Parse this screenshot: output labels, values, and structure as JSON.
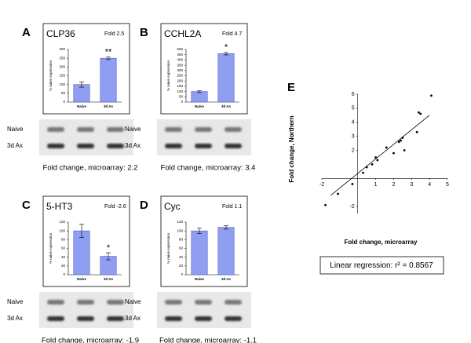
{
  "chart_data": [
    {
      "type": "bar",
      "panel": "A",
      "title": "CLP36",
      "fold": "Fold 2.5",
      "ylabel": "% naive expression",
      "categories": [
        "Naive",
        "3d Ax"
      ],
      "values": [
        100,
        250
      ],
      "errors": [
        15,
        8
      ],
      "annotation": "**",
      "color": "#8f9ef0",
      "ylim": [
        0,
        300
      ],
      "yticks": [
        0,
        50,
        100,
        150,
        200,
        250,
        300
      ],
      "gel_rows": [
        "Naive",
        "3d Ax"
      ],
      "caption": "Fold change, microarray: 2.2"
    },
    {
      "type": "bar",
      "panel": "B",
      "title": "CCHL2A",
      "fold": "Fold 4.7",
      "ylabel": "% naive expression",
      "categories": [
        "Naive",
        "3d Ax"
      ],
      "values": [
        100,
        460
      ],
      "errors": [
        10,
        12
      ],
      "annotation": "*",
      "color": "#8f9ef0",
      "ylim": [
        0,
        500
      ],
      "yticks": [
        0,
        50,
        100,
        150,
        200,
        250,
        300,
        350,
        400,
        450,
        500
      ],
      "gel_rows": [
        "Naive",
        "3d Ax"
      ],
      "caption": "Fold change, microarray: 3.4"
    },
    {
      "type": "bar",
      "panel": "C",
      "title": "5-HT3",
      "fold": "Fold -2.6",
      "ylabel": "% naive expression",
      "categories": [
        "Naive",
        "3d Ax"
      ],
      "values": [
        100,
        42
      ],
      "errors": [
        15,
        8
      ],
      "annotation": "*",
      "color": "#8f9ef0",
      "ylim": [
        0,
        120
      ],
      "yticks": [
        0,
        20,
        40,
        60,
        80,
        100,
        120
      ],
      "gel_rows": [
        "Naive",
        "3d Ax"
      ],
      "caption": "Fold change, microarray: -1.9"
    },
    {
      "type": "bar",
      "panel": "D",
      "title": "Cyc",
      "fold": "Fold 1.1",
      "ylabel": "% naive expression",
      "categories": [
        "Naive",
        "3d Ax"
      ],
      "values": [
        100,
        108
      ],
      "errors": [
        6,
        4
      ],
      "color": "#8f9ef0",
      "ylim": [
        0,
        120
      ],
      "yticks": [
        0,
        20,
        40,
        60,
        80,
        100,
        120
      ],
      "gel_rows": [
        "Naive",
        "3d Ax"
      ],
      "caption": "Fold change, microarray: -1.1"
    },
    {
      "type": "scatter",
      "panel": "E",
      "xlabel": "Fold change, microarray",
      "ylabel": "Fold change, Northern",
      "x": [
        4.1,
        3.4,
        3.5,
        3.3,
        2.5,
        2.3,
        2.4,
        2.6,
        2.0,
        1.6,
        1.0,
        1.1,
        0.8,
        0.5,
        0.3,
        -0.3,
        -1.1,
        -1.8
      ],
      "y": [
        5.9,
        4.7,
        4.6,
        3.3,
        2.9,
        2.6,
        2.7,
        2.0,
        1.8,
        2.2,
        1.5,
        1.3,
        1.0,
        0.8,
        0.4,
        -0.4,
        -1.1,
        -1.9
      ],
      "trendline": {
        "x": [
          -1.5,
          4.0
        ],
        "y": [
          -1.2,
          4.5
        ]
      },
      "color": "#000000",
      "xlim": [
        -2,
        5
      ],
      "ylim": [
        -2.5,
        6
      ],
      "xticks": [
        -2,
        1,
        2,
        3,
        4,
        5
      ],
      "yticks": [
        -2,
        2,
        3,
        4,
        5,
        6
      ],
      "caption": "Linear regression: r² = 0.8567"
    }
  ]
}
